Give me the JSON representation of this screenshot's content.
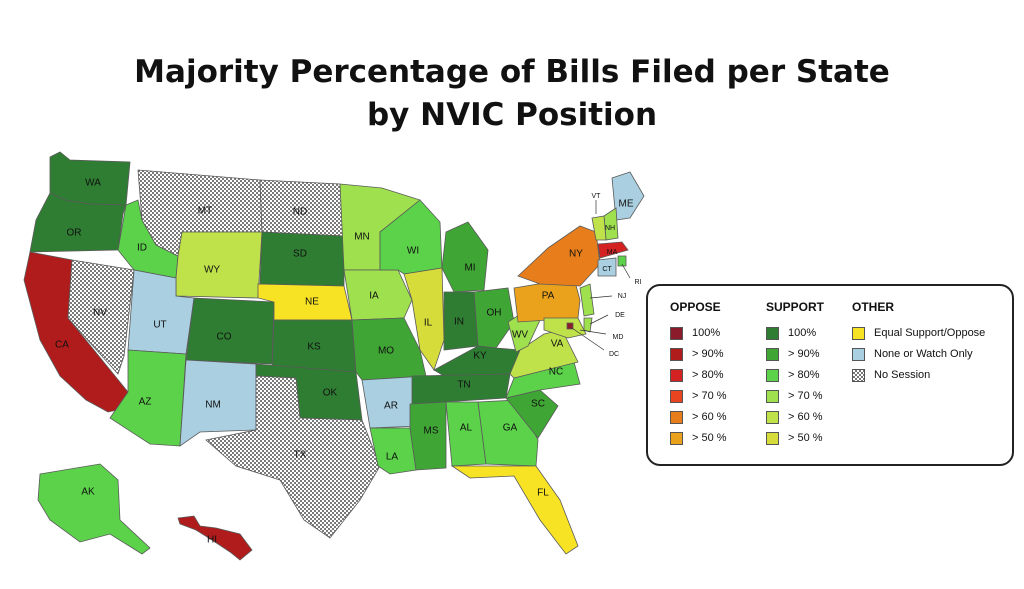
{
  "title": {
    "line1": "Majority Percentage of Bills Filed per State",
    "line2": "by NVIC Position"
  },
  "colors": {
    "oppose_100": "#8b1a2b",
    "oppose_90": "#b01c1c",
    "oppose_80": "#d42222",
    "oppose_70": "#e8441f",
    "oppose_60": "#e87d1c",
    "oppose_50": "#eaa21d",
    "support_100": "#2e7d32",
    "support_90": "#3fa535",
    "support_80": "#5bd24a",
    "support_70": "#9ee04d",
    "support_60": "#bfe24a",
    "support_50": "#d6dc3a",
    "equal": "#f7e324",
    "watch": "#a9cfe0",
    "no_session": "checker"
  },
  "legend": {
    "oppose": {
      "heading": "OPPOSE",
      "items": [
        {
          "label": "100%",
          "color": "#8b1a2b"
        },
        {
          "label": "> 90%",
          "color": "#b01c1c"
        },
        {
          "label": "> 80%",
          "color": "#d42222"
        },
        {
          "label": "> 70 %",
          "color": "#e8441f"
        },
        {
          "label": "> 60 %",
          "color": "#e87d1c"
        },
        {
          "label": "> 50 %",
          "color": "#eaa21d"
        }
      ]
    },
    "support": {
      "heading": "SUPPORT",
      "items": [
        {
          "label": "100%",
          "color": "#2e7d32"
        },
        {
          "label": "> 90%",
          "color": "#3fa535"
        },
        {
          "label": "> 80%",
          "color": "#5bd24a"
        },
        {
          "label": "> 70 %",
          "color": "#9ee04d"
        },
        {
          "label": "> 60 %",
          "color": "#bfe24a"
        },
        {
          "label": "> 50 %",
          "color": "#d6dc3a"
        }
      ]
    },
    "other": {
      "heading": "OTHER",
      "items": [
        {
          "label": "Equal Support/Oppose",
          "color": "#f7e324"
        },
        {
          "label": "None or Watch Only",
          "color": "#a9cfe0"
        },
        {
          "label": "No Session",
          "color": "checker"
        }
      ]
    }
  },
  "states": [
    {
      "abbr": "WA",
      "category": "support_100"
    },
    {
      "abbr": "OR",
      "category": "support_100"
    },
    {
      "abbr": "CA",
      "category": "oppose_90"
    },
    {
      "abbr": "NV",
      "category": "no_session"
    },
    {
      "abbr": "ID",
      "category": "support_80"
    },
    {
      "abbr": "MT",
      "category": "no_session"
    },
    {
      "abbr": "WY",
      "category": "support_60"
    },
    {
      "abbr": "UT",
      "category": "watch"
    },
    {
      "abbr": "AZ",
      "category": "support_80"
    },
    {
      "abbr": "CO",
      "category": "support_100"
    },
    {
      "abbr": "NM",
      "category": "watch"
    },
    {
      "abbr": "ND",
      "category": "no_session"
    },
    {
      "abbr": "SD",
      "category": "support_100"
    },
    {
      "abbr": "NE",
      "category": "equal"
    },
    {
      "abbr": "KS",
      "category": "support_100"
    },
    {
      "abbr": "OK",
      "category": "support_100"
    },
    {
      "abbr": "TX",
      "category": "no_session"
    },
    {
      "abbr": "MN",
      "category": "support_70"
    },
    {
      "abbr": "IA",
      "category": "support_70"
    },
    {
      "abbr": "MO",
      "category": "support_90"
    },
    {
      "abbr": "AR",
      "category": "watch"
    },
    {
      "abbr": "LA",
      "category": "support_80"
    },
    {
      "abbr": "WI",
      "category": "support_80"
    },
    {
      "abbr": "IL",
      "category": "support_50"
    },
    {
      "abbr": "MI",
      "category": "support_90"
    },
    {
      "abbr": "IN",
      "category": "support_100"
    },
    {
      "abbr": "OH",
      "category": "support_90"
    },
    {
      "abbr": "KY",
      "category": "support_100"
    },
    {
      "abbr": "TN",
      "category": "support_100"
    },
    {
      "abbr": "MS",
      "category": "support_90"
    },
    {
      "abbr": "AL",
      "category": "support_80"
    },
    {
      "abbr": "GA",
      "category": "support_80"
    },
    {
      "abbr": "FL",
      "category": "equal"
    },
    {
      "abbr": "SC",
      "category": "support_90"
    },
    {
      "abbr": "NC",
      "category": "support_80"
    },
    {
      "abbr": "VA",
      "category": "support_60"
    },
    {
      "abbr": "WV",
      "category": "support_70"
    },
    {
      "abbr": "PA",
      "category": "oppose_50"
    },
    {
      "abbr": "NY",
      "category": "oppose_60"
    },
    {
      "abbr": "ME",
      "category": "watch"
    },
    {
      "abbr": "NH",
      "category": "support_70"
    },
    {
      "abbr": "VT",
      "category": "support_60"
    },
    {
      "abbr": "MA",
      "category": "oppose_80"
    },
    {
      "abbr": "RI",
      "category": "support_80"
    },
    {
      "abbr": "CT",
      "category": "watch"
    },
    {
      "abbr": "NJ",
      "category": "support_70"
    },
    {
      "abbr": "DE",
      "category": "support_70"
    },
    {
      "abbr": "MD",
      "category": "support_60"
    },
    {
      "abbr": "DC",
      "category": "oppose_100"
    },
    {
      "abbr": "AK",
      "category": "support_80"
    },
    {
      "abbr": "HI",
      "category": "oppose_90"
    }
  ]
}
